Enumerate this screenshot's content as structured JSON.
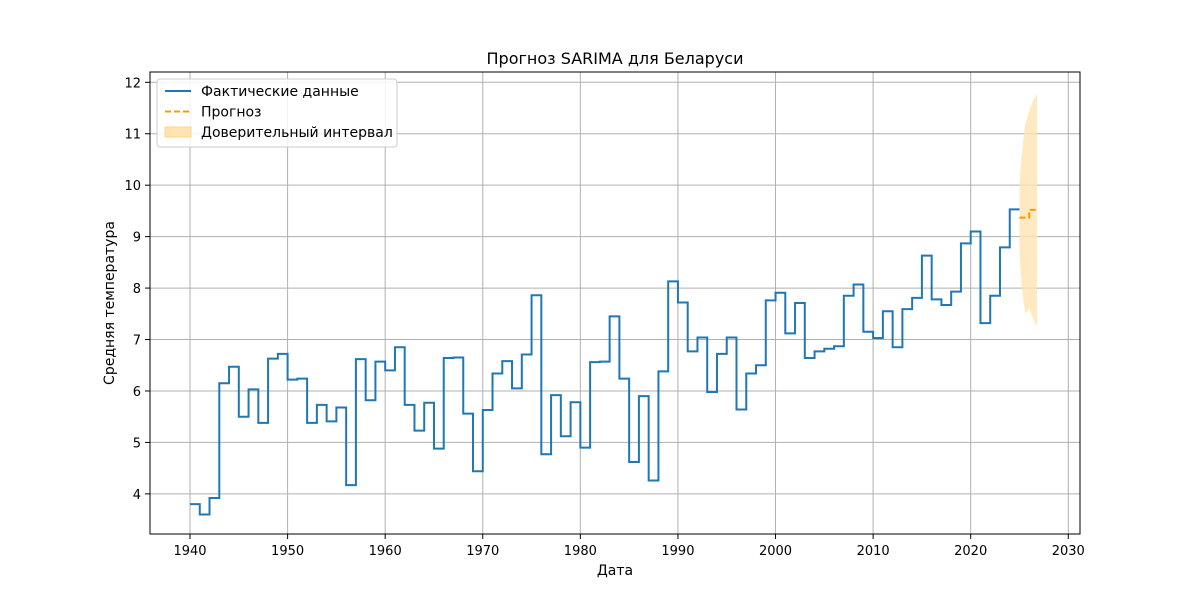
{
  "chart_data": {
    "type": "line",
    "title": "Прогноз SARIMA для Беларуси",
    "xlabel": "Дата",
    "ylabel": "Средняя температура",
    "xlim": [
      1935.9,
      2031.2
    ],
    "ylim": [
      3.22,
      12.2
    ],
    "x_ticks": [
      1940,
      1950,
      1960,
      1970,
      1980,
      1990,
      2000,
      2010,
      2020,
      2030
    ],
    "y_ticks": [
      4,
      5,
      6,
      7,
      8,
      9,
      10,
      11,
      12
    ],
    "grid": true,
    "legend_position": "top-left",
    "legend": [
      {
        "label": "Фактические данные",
        "kind": "line",
        "color": "#1f77b4"
      },
      {
        "label": "Прогноз",
        "kind": "dashed",
        "color": "#ff9900"
      },
      {
        "label": "Доверительный интервал",
        "kind": "patch",
        "color": "#ffe4b2"
      }
    ],
    "series": [
      {
        "name": "Фактические данные",
        "style": "step",
        "color": "#1f77b4",
        "x": [
          1940,
          1941,
          1942,
          1943,
          1944,
          1945,
          1946,
          1947,
          1948,
          1949,
          1950,
          1951,
          1952,
          1953,
          1954,
          1955,
          1956,
          1957,
          1958,
          1959,
          1960,
          1961,
          1962,
          1963,
          1964,
          1965,
          1966,
          1967,
          1968,
          1969,
          1970,
          1971,
          1972,
          1973,
          1974,
          1975,
          1976,
          1977,
          1978,
          1979,
          1980,
          1981,
          1982,
          1983,
          1984,
          1985,
          1986,
          1987,
          1988,
          1989,
          1990,
          1991,
          1992,
          1993,
          1994,
          1995,
          1996,
          1997,
          1998,
          1999,
          2000,
          2001,
          2002,
          2003,
          2004,
          2005,
          2006,
          2007,
          2008,
          2009,
          2010,
          2011,
          2012,
          2013,
          2014,
          2015,
          2016,
          2017,
          2018,
          2019,
          2020,
          2021,
          2022,
          2023,
          2024,
          2025
        ],
        "y": [
          3.8,
          3.6,
          3.92,
          6.15,
          6.47,
          5.5,
          6.03,
          5.38,
          6.63,
          6.72,
          6.22,
          6.24,
          5.38,
          5.73,
          5.41,
          5.68,
          4.17,
          6.62,
          5.82,
          6.57,
          6.4,
          6.85,
          5.73,
          5.23,
          5.77,
          4.88,
          6.64,
          6.65,
          5.56,
          4.44,
          5.63,
          6.34,
          6.58,
          6.05,
          6.71,
          7.86,
          4.77,
          5.92,
          5.12,
          5.78,
          4.9,
          6.56,
          6.57,
          7.45,
          6.24,
          4.62,
          5.9,
          4.26,
          6.38,
          8.13,
          7.72,
          6.77,
          7.04,
          5.98,
          6.72,
          7.04,
          5.64,
          6.34,
          6.5,
          7.76,
          7.91,
          7.12,
          7.71,
          6.64,
          6.77,
          6.82,
          6.87,
          7.85,
          8.07,
          7.15,
          7.03,
          7.55,
          6.85,
          7.59,
          7.81,
          8.63,
          7.78,
          7.67,
          7.93,
          8.87,
          9.1,
          7.32,
          7.85,
          8.79,
          9.53,
          9.53
        ]
      },
      {
        "name": "Прогноз",
        "style": "step",
        "color": "#ff9900",
        "x": [
          2025,
          2025.5,
          2026,
          2026.8
        ],
        "y": [
          9.37,
          9.37,
          9.52,
          9.52
        ]
      }
    ],
    "confidence_interval": {
      "name": "Доверительный интервал",
      "color": "#ffe4b2",
      "x": [
        2025,
        2025.3,
        2025.6,
        2026,
        2026.4,
        2026.8
      ],
      "lower": [
        8.6,
        7.9,
        7.5,
        7.6,
        7.4,
        7.25
      ],
      "upper": [
        10.1,
        10.7,
        11.2,
        11.45,
        11.65,
        11.78
      ]
    }
  }
}
